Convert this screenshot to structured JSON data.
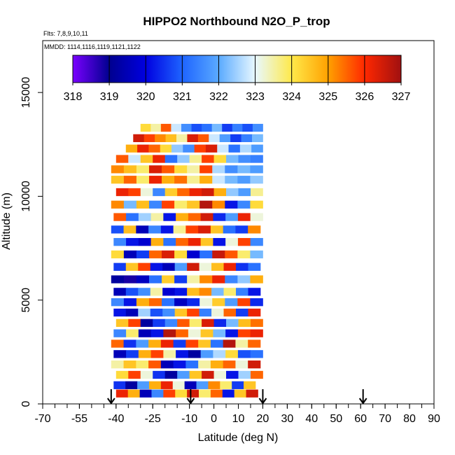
{
  "chart_data": {
    "type": "heatmap",
    "title": "HIPPO2 Northbound N2O_P_trop",
    "subtitle_flights": "Flts: 7,8,9,10,11",
    "subtitle_dates": "MMDD: 1114,1116,1119,1121,1122",
    "xlabel": "Latitude (deg N)",
    "ylabel": "Altitude (m)",
    "xlim": [
      -70,
      90
    ],
    "ylim": [
      0,
      17500
    ],
    "x_ticks_labeled": [
      "-70",
      "-55",
      "-40",
      "-25",
      "-10",
      "0",
      "10",
      "20",
      "30",
      "40",
      "50",
      "60",
      "70",
      "80",
      "90"
    ],
    "x_tick_values": [
      -70,
      -55,
      -40,
      -25,
      -10,
      0,
      10,
      20,
      30,
      40,
      50,
      60,
      70,
      80,
      90
    ],
    "y_ticks_labeled": [
      "0",
      "5000",
      "10000",
      "15000"
    ],
    "y_tick_values": [
      0,
      5000,
      10000,
      15000
    ],
    "colorbar": {
      "labels": [
        "318",
        "319",
        "320",
        "321",
        "322",
        "323",
        "324",
        "325",
        "326",
        "327"
      ],
      "values": [
        318,
        319,
        320,
        321,
        322,
        323,
        324,
        325,
        326,
        327
      ],
      "colors": [
        "#7a00ff",
        "#00008f",
        "#0000e0",
        "#1e64ff",
        "#5aaaff",
        "#e8f8ff",
        "#ffe94a",
        "#ffa100",
        "#ff2800",
        "#a01010"
      ]
    },
    "flight_markers_lat": [
      -42,
      -9.5,
      20,
      61
    ],
    "profiles": [
      {
        "y": 500,
        "x0": -40,
        "x1": 18,
        "vals": [
          326.2,
          324.8,
          319.5,
          321.5,
          325.8,
          324.2,
          326.5,
          323.8,
          325.5,
          320.2,
          324.5,
          326.5
        ]
      },
      {
        "y": 900,
        "x0": -41,
        "x1": 17,
        "vals": [
          320.5,
          319.2,
          321.8,
          324.8,
          326.2,
          323.2,
          319.5,
          321.8,
          325.2,
          323.8,
          320.6,
          324.5
        ]
      },
      {
        "y": 1400,
        "x0": -40,
        "x1": 20,
        "vals": [
          324.2,
          325.8,
          323.2,
          320.5,
          319.2,
          321.8,
          324.5,
          326.5,
          323.2,
          320.2,
          322.5,
          325.5
        ]
      },
      {
        "y": 1900,
        "x0": -42,
        "x1": 19,
        "vals": [
          323.5,
          324.5,
          323.8,
          325.6,
          319.5,
          320.2,
          321.2,
          323.5,
          324.8,
          325.5,
          323.2,
          326.5
        ]
      },
      {
        "y": 2400,
        "x0": -41,
        "x1": 20,
        "vals": [
          319.5,
          320.6,
          324.8,
          325.8,
          323.5,
          320.2,
          319.2,
          321.8,
          322.6,
          324.2,
          320.8,
          321.2
        ]
      },
      {
        "y": 2900,
        "x0": -42,
        "x1": 19,
        "vals": [
          325.5,
          320.5,
          321.8,
          324.8,
          326.2,
          320.6,
          325.8,
          324.5,
          321.2,
          326.8,
          323.5,
          325.5
        ]
      },
      {
        "y": 3400,
        "x0": -41,
        "x1": 20,
        "vals": [
          321.5,
          323.8,
          319.5,
          320.2,
          326.8,
          325.5,
          323.2,
          324.5,
          322.2,
          320.2,
          325.8,
          326.2
        ]
      },
      {
        "y": 3900,
        "x0": -40,
        "x1": 20,
        "vals": [
          324.5,
          325.8,
          319.2,
          320.6,
          321.5,
          325.6,
          323.8,
          326.4,
          320.4,
          322.2,
          324.6,
          325.4
        ]
      },
      {
        "y": 4400,
        "x0": -41,
        "x1": 19,
        "vals": [
          320.2,
          319.5,
          322.5,
          320.8,
          321.6,
          324.5,
          325.8,
          321.4,
          323.2,
          325.5,
          320.6,
          326.2
        ]
      },
      {
        "y": 4900,
        "x0": -42,
        "x1": 20,
        "vals": [
          321.5,
          320.2,
          324.8,
          325.5,
          321.2,
          319.6,
          320.4,
          323.2,
          324.4,
          321.8,
          325.8,
          320.4
        ]
      },
      {
        "y": 5400,
        "x0": -41,
        "x1": 19,
        "vals": [
          319.5,
          320.8,
          321.6,
          323.5,
          319.8,
          320.2,
          324.6,
          325.2,
          322.2,
          323.8,
          321.4,
          320.2
        ]
      },
      {
        "y": 6000,
        "x0": -42,
        "x1": 20,
        "vals": [
          319.2,
          318.8,
          319.6,
          321.2,
          324.4,
          320.6,
          323.5,
          325.2,
          326.2,
          321.5,
          322.4,
          324.8
        ]
      },
      {
        "y": 6600,
        "x0": -41,
        "x1": 19,
        "vals": [
          320.6,
          324.5,
          325.8,
          320.2,
          319.5,
          321.8,
          326.5,
          323.2,
          324.6,
          326.2,
          320.5,
          321.2
        ]
      },
      {
        "y": 7200,
        "x0": -42,
        "x1": 20,
        "vals": [
          324.2,
          319.5,
          320.6,
          325.5,
          326.4,
          324.2,
          319.8,
          321.2,
          326.6,
          325.6,
          323.8,
          322.2
        ]
      },
      {
        "y": 7800,
        "x0": -41,
        "x1": 20,
        "vals": [
          321.5,
          320.2,
          319.8,
          324.8,
          321.2,
          325.5,
          326.2,
          324.5,
          320.2,
          323.2,
          325.8,
          321.5
        ]
      },
      {
        "y": 8400,
        "x0": -42,
        "x1": 19,
        "vals": [
          320.8,
          324.6,
          319.5,
          321.5,
          320.2,
          323.6,
          325.8,
          326.4,
          324.5,
          321.2,
          320.6,
          325.2
        ]
      },
      {
        "y": 9000,
        "x0": -41,
        "x1": 20,
        "vals": [
          325.6,
          321.2,
          322.5,
          323.5,
          320.2,
          324.8,
          325.5,
          326.5,
          320.4,
          321.8,
          326.2,
          323.2
        ]
      },
      {
        "y": 9600,
        "x0": -42,
        "x1": 20,
        "vals": [
          325.2,
          322.2,
          324.6,
          321.5,
          325.8,
          323.8,
          324.5,
          326.8,
          325.2,
          320.2,
          321.5,
          324.2
        ]
      },
      {
        "y": 10200,
        "x0": -40,
        "x1": 20,
        "vals": [
          326.2,
          325.8,
          323.2,
          321.5,
          324.4,
          325.5,
          326.2,
          326.5,
          324.8,
          322.4,
          321.8,
          323.6
        ]
      },
      {
        "y": 10800,
        "x0": -42,
        "x1": 20,
        "vals": [
          324.5,
          325.5,
          323.8,
          326.2,
          324.8,
          325.4,
          323.6,
          324.8,
          322.8,
          322.2,
          321.8,
          322.4
        ]
      },
      {
        "y": 11300,
        "x0": -42,
        "x1": 20,
        "vals": [
          325.2,
          324.6,
          323.8,
          326.4,
          325.6,
          324.2,
          323.5,
          325.8,
          322.6,
          321.6,
          322.2,
          321.8
        ]
      },
      {
        "y": 11800,
        "x0": -40,
        "x1": 20,
        "vals": [
          325.6,
          322.8,
          324.5,
          326.2,
          321.2,
          322.4,
          323.6,
          325.8,
          324.2,
          322.2,
          321.6,
          321.4
        ]
      },
      {
        "y": 12300,
        "x0": -36,
        "x1": 20,
        "vals": [
          324.8,
          326.2,
          325.5,
          324.2,
          322.4,
          321.6,
          325.8,
          326.4,
          322.8,
          321.2,
          322.6,
          321.8
        ]
      },
      {
        "y": 12800,
        "x0": -33,
        "x1": 20,
        "vals": [
          326.5,
          325.8,
          325.2,
          324.6,
          323.5,
          326.4,
          325.6,
          322.8,
          321.8,
          320.6,
          321.4,
          322.2
        ]
      },
      {
        "y": 13300,
        "x0": -30,
        "x1": 20,
        "vals": [
          324.2,
          323.5,
          325.6,
          322.8,
          321.6,
          320.8,
          321.2,
          322.2,
          320.6,
          321.4,
          320.8,
          321.6
        ]
      }
    ]
  }
}
